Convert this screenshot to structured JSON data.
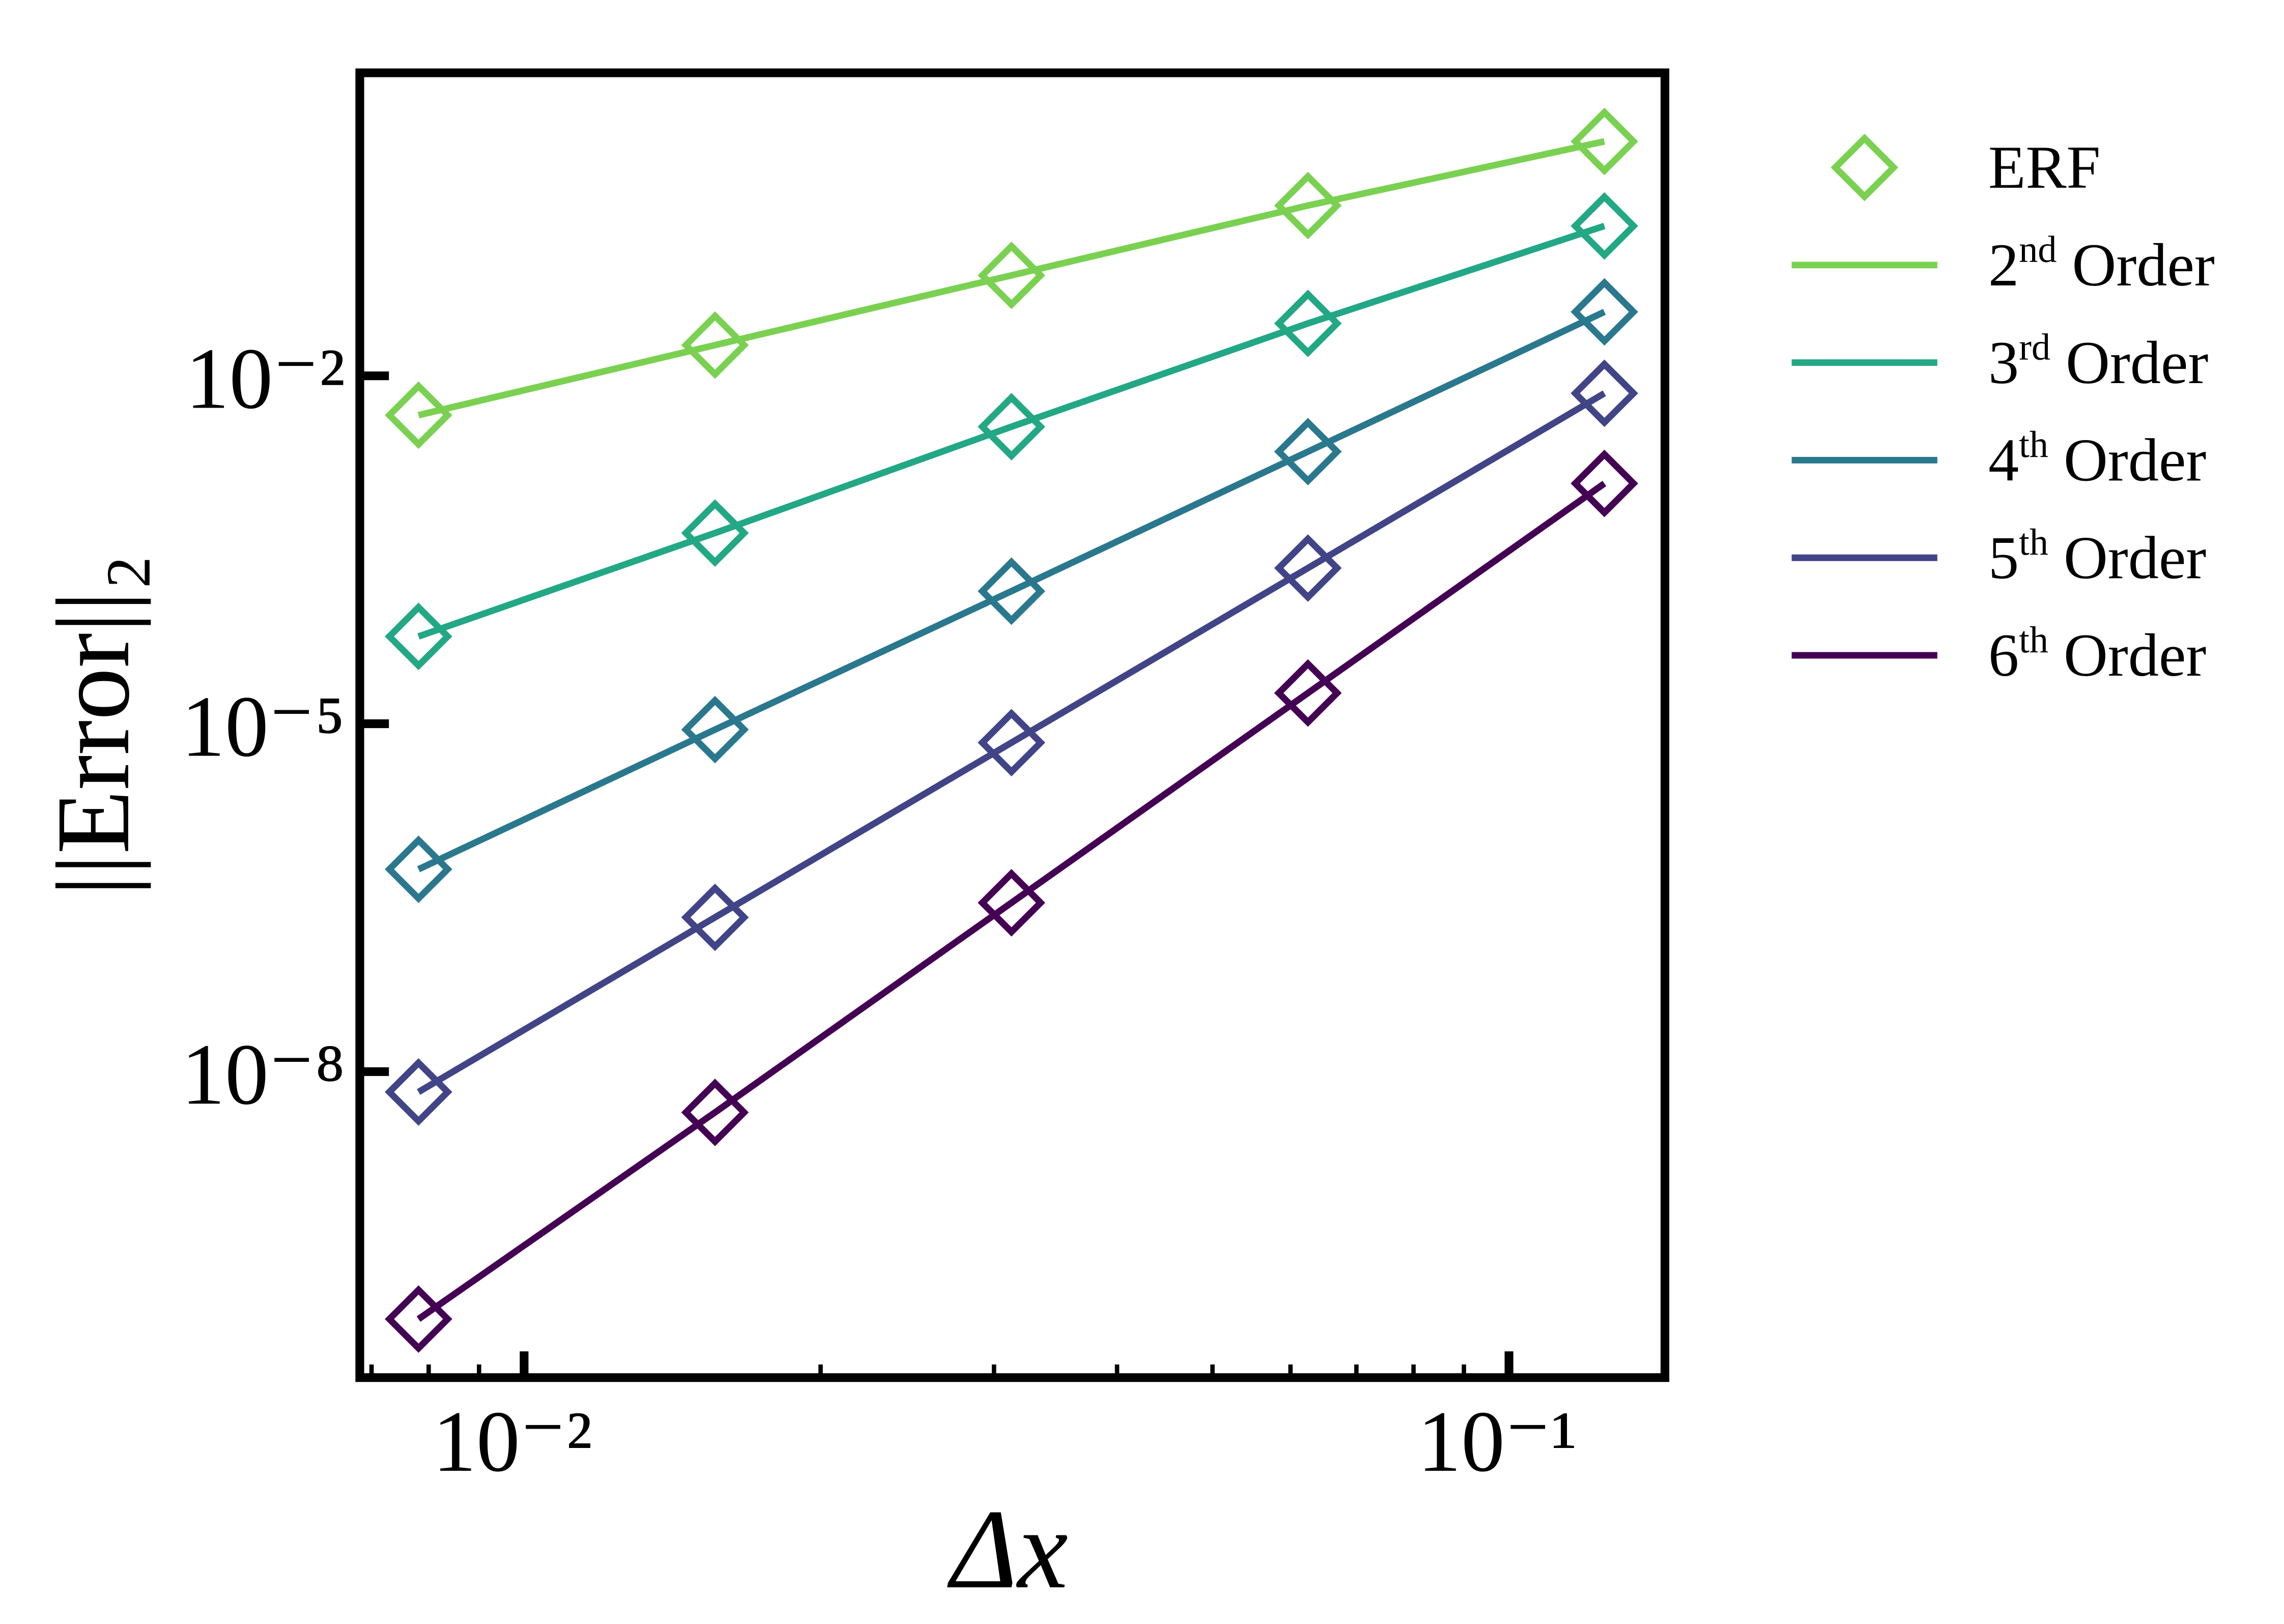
{
  "chart_data": {
    "type": "line",
    "xlabel": "Δx",
    "ylabel": "||Error||₂",
    "log_x": true,
    "log_y": true,
    "x": [
      0.0078125,
      0.015625,
      0.03125,
      0.0625,
      0.125
    ],
    "xlim": [
      0.00681,
      0.144
    ],
    "ylim": [
      2.3e-11,
      4.1
    ],
    "xticks": [
      {
        "value": 0.01,
        "label": "10⁻²"
      },
      {
        "value": 0.1,
        "label": "10⁻¹"
      }
    ],
    "xminorticks": [
      0.007,
      0.008,
      0.009,
      0.02,
      0.03,
      0.04,
      0.05,
      0.06,
      0.07,
      0.08,
      0.09
    ],
    "yticks": [
      {
        "value": 0.01,
        "label": "10⁻²"
      },
      {
        "value": 1e-05,
        "label": "10⁻⁵"
      },
      {
        "value": 1e-08,
        "label": "10⁻⁸"
      }
    ],
    "marker_legend": {
      "label": "ERF",
      "color": "#7ad151"
    },
    "series": [
      {
        "name": "2nd Order",
        "color": "#7ad151",
        "values": [
          0.00458,
          0.0184,
          0.0735,
          0.294,
          1.05
        ]
      },
      {
        "name": "3rd Order",
        "color": "#22a884",
        "values": [
          5.66e-05,
          0.000441,
          0.00364,
          0.0283,
          0.196
        ]
      },
      {
        "name": "4th Order",
        "color": "#2a788e",
        "values": [
          5.56e-07,
          8.9e-06,
          0.000139,
          0.00222,
          0.0356
        ]
      },
      {
        "name": "5th Order",
        "color": "#414487",
        "values": [
          6.68e-09,
          2.14e-07,
          6.87e-06,
          0.00022,
          0.00707
        ]
      },
      {
        "name": "6th Order",
        "color": "#440154",
        "values": [
          7.35e-11,
          4.45e-09,
          2.86e-07,
          1.84e-05,
          0.00118
        ]
      }
    ]
  }
}
